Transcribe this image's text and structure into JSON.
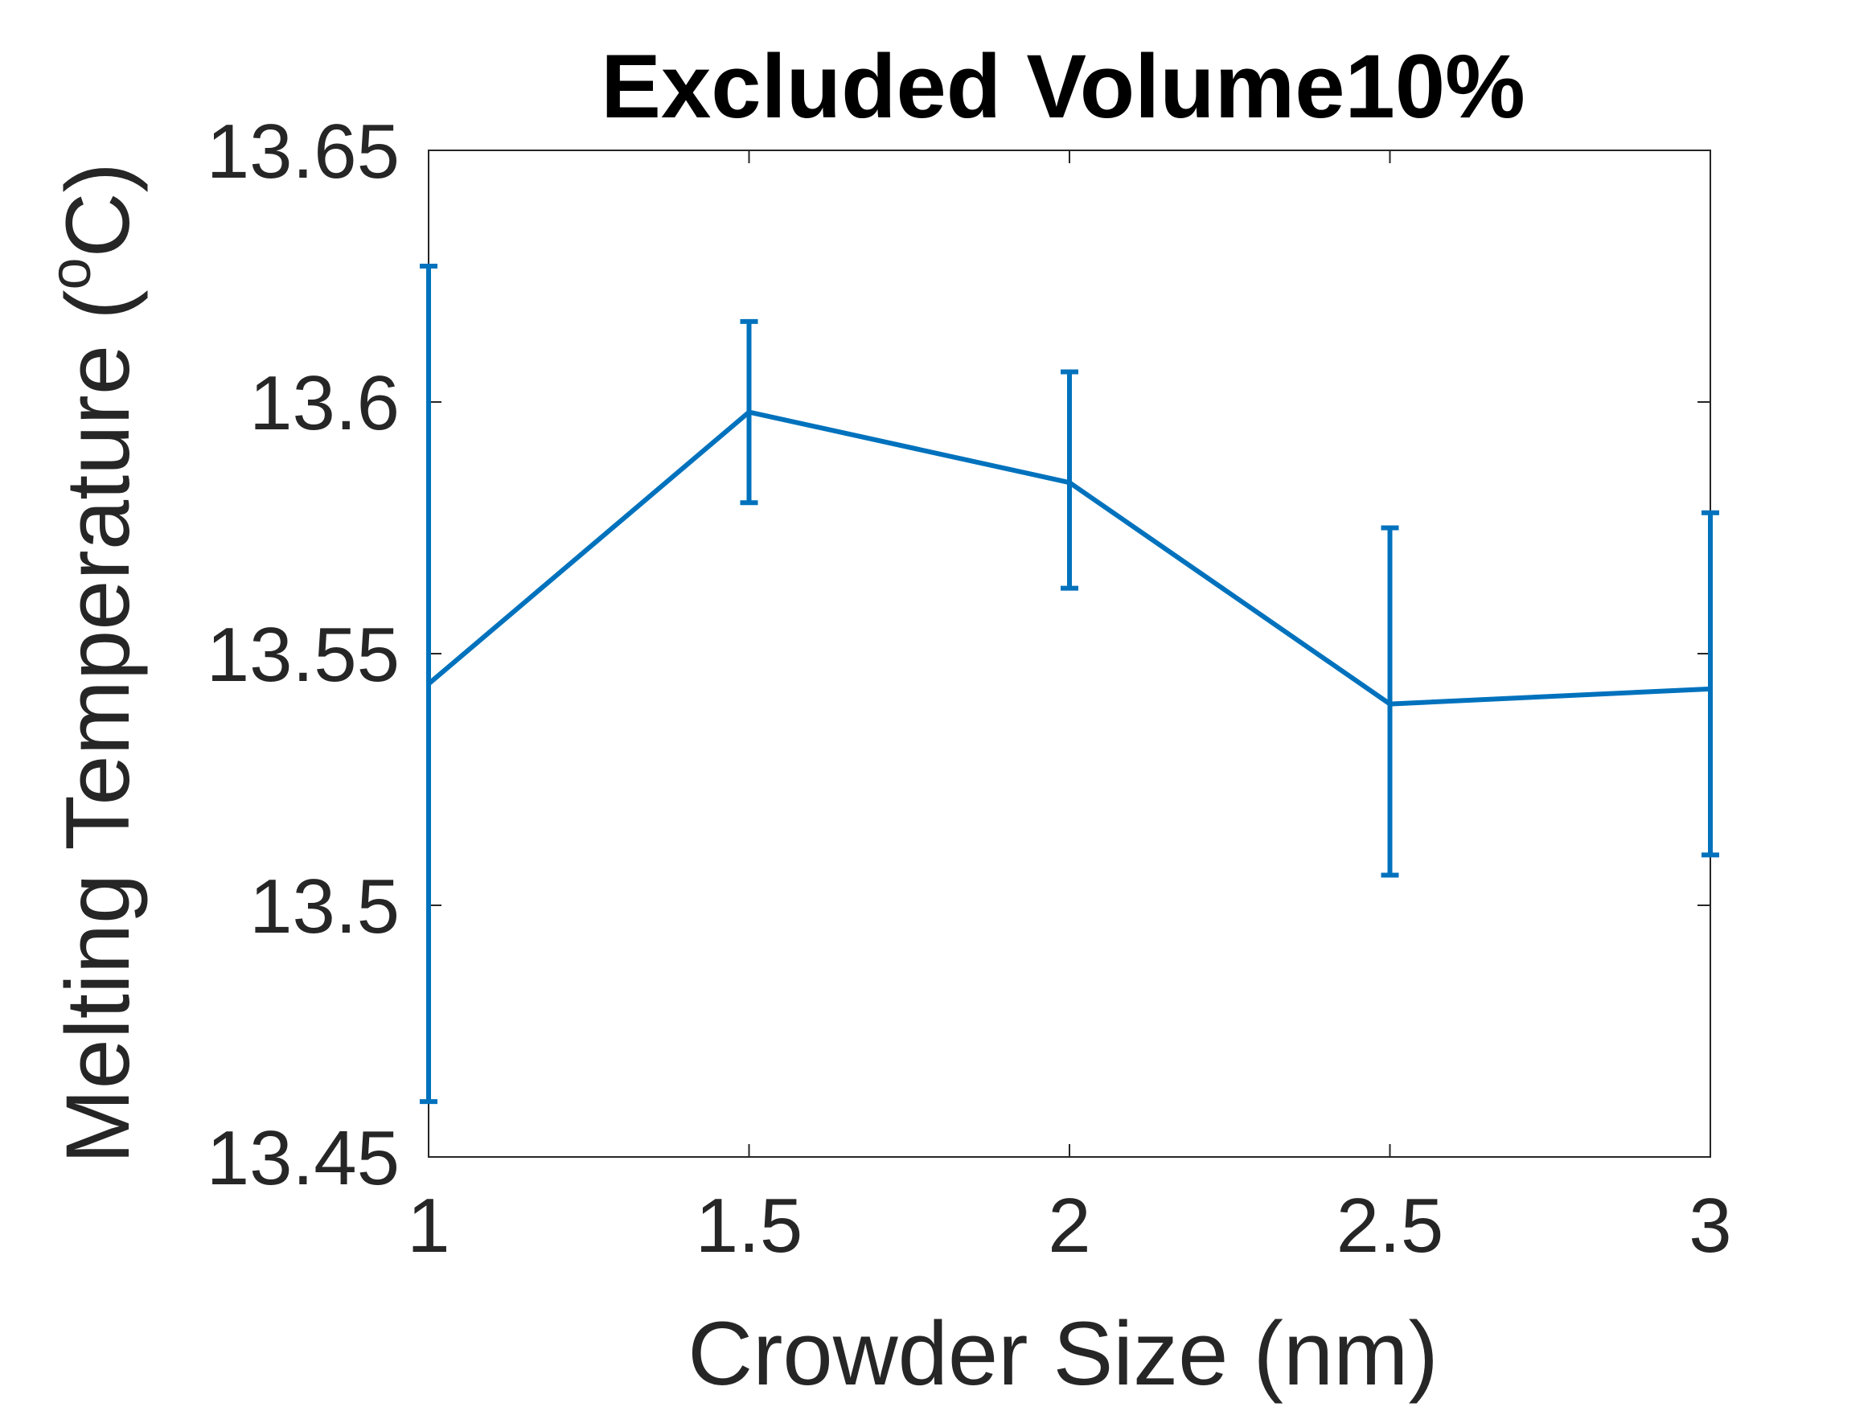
{
  "chart_data": {
    "type": "line",
    "title": "Excluded Volume10%",
    "xlabel": "Crowder Size (nm)",
    "ylabel_main": "Melting Temperature (",
    "ylabel_sup": "o",
    "ylabel_end": "C)",
    "xlim": [
      1,
      3
    ],
    "ylim": [
      13.45,
      13.65
    ],
    "xticks": [
      1,
      1.5,
      2,
      2.5,
      3
    ],
    "xtick_labels": [
      "1",
      "1.5",
      "2",
      "2.5",
      "3"
    ],
    "yticks": [
      13.45,
      13.5,
      13.55,
      13.6,
      13.65
    ],
    "ytick_labels": [
      "13.45",
      "13.5",
      "13.55",
      "13.6",
      "13.65"
    ],
    "grid": false,
    "series": [
      {
        "color": "#0072BD",
        "x": [
          1,
          1.5,
          2,
          2.5,
          3
        ],
        "y": [
          13.544,
          13.598,
          13.584,
          13.54,
          13.543
        ],
        "err_low": [
          13.461,
          13.58,
          13.563,
          13.506,
          13.51
        ],
        "err_high": [
          13.627,
          13.616,
          13.606,
          13.575,
          13.578
        ]
      }
    ]
  }
}
